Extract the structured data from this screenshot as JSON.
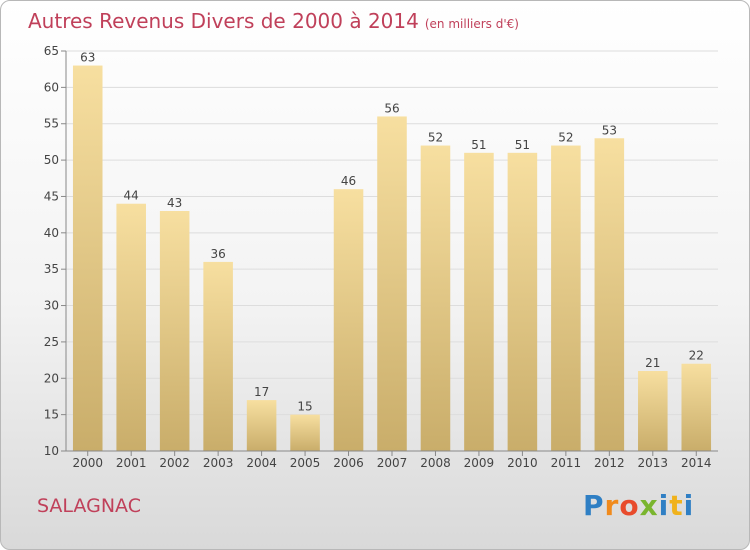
{
  "title": "Autres Revenus Divers de 2000 à 2014",
  "subtitle": "(en milliers d'€)",
  "commune": "SALAGNAC",
  "brand": "Proxiti",
  "colors": {
    "title": "#c0405a",
    "bar_top": "#f7dfa0",
    "bar_bottom": "#c9ad6a",
    "grid": "#dddddd"
  },
  "chart_data": {
    "type": "bar",
    "title": "Autres Revenus Divers de 2000 à 2014",
    "xlabel": "",
    "ylabel": "",
    "categories": [
      "2000",
      "2001",
      "2002",
      "2003",
      "2004",
      "2005",
      "2006",
      "2007",
      "2008",
      "2009",
      "2010",
      "2011",
      "2012",
      "2013",
      "2014"
    ],
    "values": [
      63,
      44,
      43,
      36,
      17,
      15,
      46,
      56,
      52,
      51,
      51,
      52,
      53,
      21,
      22
    ],
    "ylim": [
      10,
      65
    ],
    "yticks": [
      10,
      15,
      20,
      25,
      30,
      35,
      40,
      45,
      50,
      55,
      60,
      65
    ],
    "grid": true,
    "legend": "none"
  }
}
